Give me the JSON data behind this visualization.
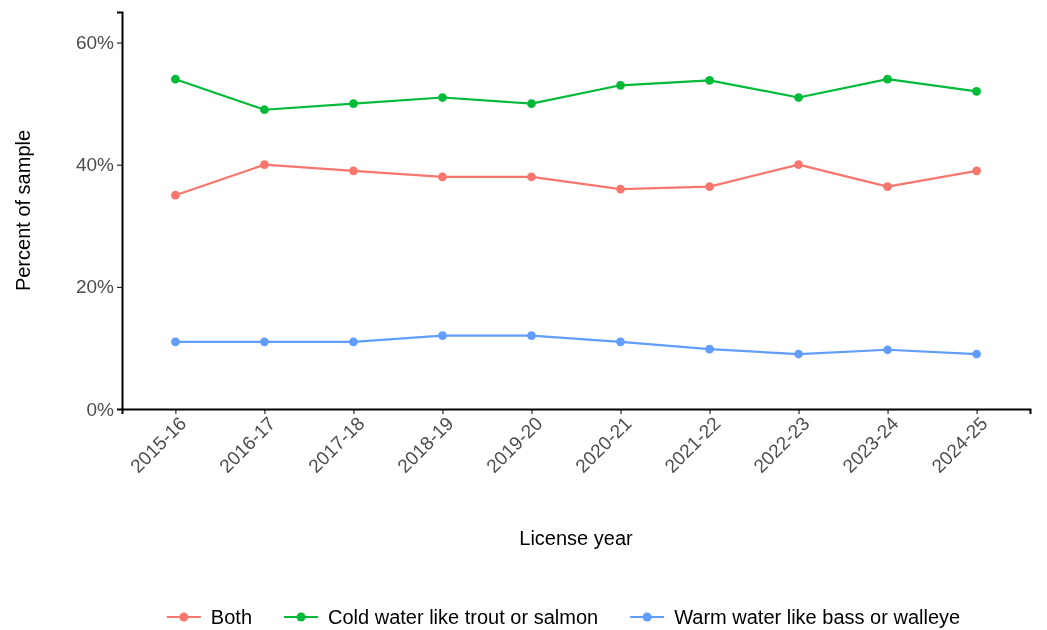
{
  "chart_data": {
    "type": "line",
    "xlabel": "License year",
    "ylabel": "Percent of sample",
    "categories": [
      "2015-16",
      "2016-17",
      "2017-18",
      "2018-19",
      "2019-20",
      "2020-21",
      "2021-22",
      "2022-23",
      "2023-24",
      "2024-25"
    ],
    "series": [
      {
        "name": "Both",
        "color": "#f8766d",
        "values": [
          35,
          40,
          39,
          38,
          38,
          36,
          36.4,
          40,
          36.4,
          39
        ]
      },
      {
        "name": "Cold water like trout or salmon",
        "color": "#00ba38",
        "values": [
          54,
          49,
          50,
          51,
          50,
          53,
          53.8,
          51,
          54,
          52
        ]
      },
      {
        "name": "Warm water like bass or walleye",
        "color": "#619cff",
        "values": [
          11,
          11,
          11,
          12,
          12,
          11,
          9.8,
          9,
          9.7,
          9
        ]
      }
    ],
    "ylim": [
      0,
      65
    ],
    "yticks": [
      {
        "value": 0,
        "label": "0%"
      },
      {
        "value": 20,
        "label": "20%"
      },
      {
        "value": 40,
        "label": "40%"
      },
      {
        "value": 60,
        "label": "60%"
      }
    ],
    "grid": false,
    "legend": "bottom",
    "marker": "circle",
    "line_style": "solid"
  }
}
